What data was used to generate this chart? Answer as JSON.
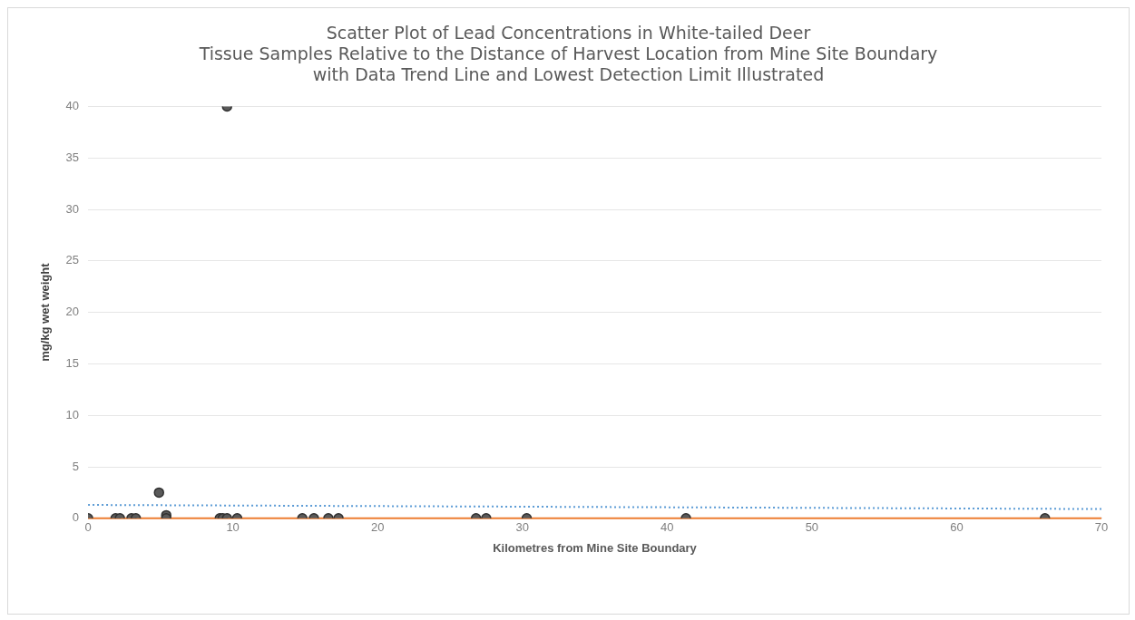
{
  "chart_data": {
    "type": "scatter",
    "title": "Scatter Plot of Lead Concentrations in White-tailed Deer\nTissue Samples Relative to the Distance of Harvest Location from Mine Site Boundary\nwith Data Trend Line and Lowest Detection Limit Illustrated",
    "xlabel": "Kilometres from Mine Site Boundary",
    "ylabel": "mg/kg wet weight",
    "xlim": [
      0,
      70
    ],
    "xticks": [
      0,
      10,
      20,
      30,
      40,
      50,
      60,
      70
    ],
    "ylim": [
      0,
      40
    ],
    "yticks": [
      0,
      5,
      10,
      15,
      20,
      25,
      30,
      35,
      40
    ],
    "grid": "y",
    "legend": false,
    "marker": "circle",
    "series": [
      {
        "color": "#5a5a5a",
        "x": [
          0,
          1.9,
          2.2,
          3.0,
          3.3,
          4.9,
          5.4,
          5.4,
          9.1,
          9.3,
          9.6,
          9.6,
          10.3,
          14.8,
          15.6,
          16.6,
          17.3,
          26.8,
          27.5,
          30.3,
          41.3,
          66.1
        ],
        "values": [
          0,
          0,
          0,
          0,
          0,
          2.5,
          0.3,
          0,
          0,
          0,
          0,
          40,
          0,
          0,
          0,
          0,
          0,
          0,
          0,
          0,
          0,
          0
        ]
      },
      {
        "type": "line",
        "color": "#5b9bd5",
        "line_style": "dotted",
        "marker": "none",
        "x": [
          0,
          70
        ],
        "values": [
          1.3,
          0.9
        ]
      }
    ],
    "ref_lines": [
      {
        "axis": "y",
        "value": 0,
        "color": "#ed7d31",
        "line_style": "solid"
      }
    ]
  }
}
